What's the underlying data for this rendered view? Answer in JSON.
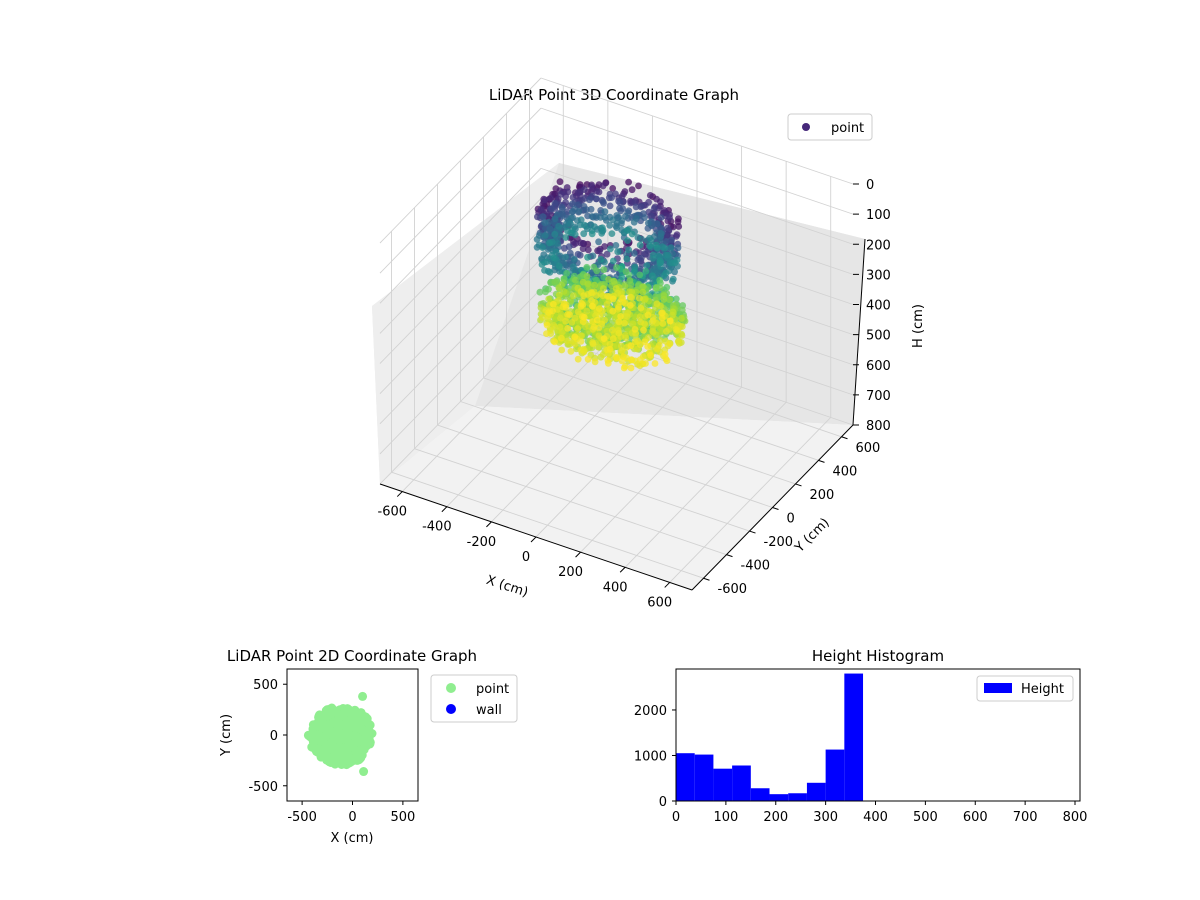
{
  "chart_data": [
    {
      "type": "scatter3d",
      "title": "LiDAR Point 3D Coordinate Graph",
      "xlabel": "X (cm)",
      "ylabel": "Y (cm)",
      "zlabel": "H (cm)",
      "xlim": [
        -700,
        700
      ],
      "ylim": [
        -700,
        700
      ],
      "zlim": [
        0,
        800
      ],
      "z_inverted": true,
      "xticks": [
        -600,
        -400,
        -200,
        0,
        200,
        400,
        600
      ],
      "yticks": [
        -600,
        -400,
        -200,
        0,
        200,
        400,
        600
      ],
      "zticks": [
        0,
        100,
        200,
        300,
        400,
        500,
        600,
        700,
        800
      ],
      "colormap": "viridis",
      "legend": {
        "entries": [
          "point"
        ],
        "placement": "upper right"
      },
      "series": [
        {
          "name": "point",
          "clusters": [
            {
              "label": "upper ring",
              "center_x": -80,
              "center_y": 80,
              "radius_x": 280,
              "radius_y": 240,
              "height_min": 50,
              "height_max": 220
            },
            {
              "label": "lower disc",
              "center_x": -20,
              "center_y": 0,
              "radius_x": 300,
              "radius_y": 260,
              "height_min": 300,
              "height_max": 400
            }
          ]
        }
      ]
    },
    {
      "type": "scatter",
      "title": "LiDAR Point 2D Coordinate Graph",
      "xlabel": "X (cm)",
      "ylabel": "Y (cm)",
      "xlim": [
        -650,
        650
      ],
      "ylim": [
        -650,
        650
      ],
      "xticks": [
        -500,
        0,
        500
      ],
      "yticks": [
        500,
        0,
        -500
      ],
      "legend": {
        "entries": [
          "point",
          "wall"
        ],
        "placement": "outside right"
      },
      "series": [
        {
          "name": "point",
          "color": "#90ee90",
          "extent_x": [
            -450,
            250
          ],
          "extent_y": [
            -380,
            380
          ]
        },
        {
          "name": "wall",
          "color": "#0000ff",
          "points": []
        }
      ]
    },
    {
      "type": "histogram",
      "title": "Height Histogram",
      "xlim": [
        0,
        810
      ],
      "ylim": [
        0,
        2900
      ],
      "xticks": [
        0,
        100,
        200,
        300,
        400,
        500,
        600,
        700,
        800
      ],
      "yticks": [
        0,
        1000,
        2000
      ],
      "legend": {
        "entries": [
          "Height"
        ],
        "placement": "upper right"
      },
      "series": [
        {
          "name": "Height",
          "color": "#0000ff",
          "bin_edges": [
            0,
            37.5,
            75,
            112.5,
            150,
            187.5,
            225,
            262.5,
            300,
            337.5,
            375
          ],
          "counts": [
            1050,
            1020,
            710,
            780,
            280,
            150,
            170,
            400,
            1130,
            2800
          ]
        }
      ]
    }
  ]
}
